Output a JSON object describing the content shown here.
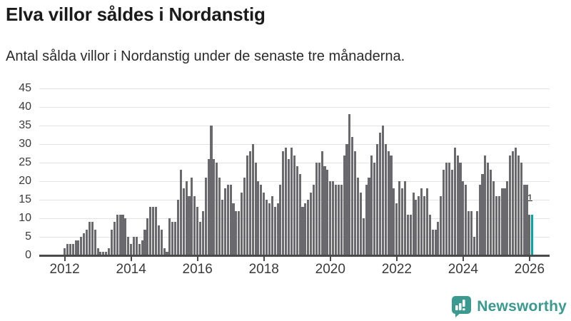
{
  "header": {
    "title": "Elva villor såldes i Nordanstig",
    "subtitle": "Antal sålda villor i Nordanstig under de senaste tre månaderna."
  },
  "chart_data": {
    "type": "bar",
    "title": "Elva villor såldes i Nordanstig",
    "subtitle": "Antal sålda villor i Nordanstig under de senaste tre månaderna.",
    "frequency": "monthly",
    "x_start": "2012-01",
    "x_end": "2026-02",
    "xlabel": "",
    "ylabel": "",
    "ylim": [
      0,
      45
    ],
    "grid": true,
    "yticks": [
      0,
      5,
      10,
      15,
      20,
      25,
      30,
      35,
      40,
      45
    ],
    "xticks": [
      2012,
      2014,
      2016,
      2018,
      2020,
      2022,
      2024,
      2026
    ],
    "values": [
      2,
      3,
      3,
      3,
      4,
      4,
      5,
      6,
      7,
      9,
      9,
      7,
      2,
      1,
      1,
      1,
      2,
      7,
      9,
      11,
      11,
      11,
      10,
      5,
      3,
      5,
      5,
      3,
      4,
      7,
      10,
      13,
      13,
      13,
      8,
      7,
      2,
      1,
      10,
      9,
      9,
      15,
      23,
      18,
      20,
      16,
      21,
      16,
      13,
      9,
      12,
      21,
      26,
      35,
      26,
      25,
      21,
      15,
      18,
      19,
      19,
      14,
      12,
      12,
      17,
      21,
      27,
      28,
      30,
      25,
      20,
      19,
      17,
      15,
      14,
      16,
      13,
      14,
      19,
      28,
      29,
      26,
      29,
      27,
      24,
      22,
      13,
      14,
      15,
      17,
      19,
      25,
      25,
      28,
      24,
      23,
      20,
      20,
      19,
      19,
      19,
      27,
      30,
      38,
      32,
      28,
      21,
      17,
      10,
      19,
      21,
      27,
      25,
      30,
      33,
      35,
      30,
      28,
      27,
      18,
      14,
      20,
      18,
      20,
      11,
      11,
      17,
      15,
      16,
      18,
      16,
      18,
      11,
      7,
      7,
      9,
      16,
      23,
      25,
      25,
      23,
      29,
      27,
      25,
      20,
      19,
      12,
      12,
      5,
      12,
      19,
      22,
      27,
      25,
      23,
      20,
      16,
      16,
      18,
      18,
      20,
      27,
      28,
      29,
      27,
      25,
      19,
      19,
      11,
      11
    ],
    "highlight_last": true,
    "last_value_label": "11",
    "colors": {
      "bar": "#69696e",
      "highlight": "#00a6a4"
    }
  },
  "footer": {
    "brand": "Newsworthy",
    "brand_color": "#3a9a90",
    "logo_icon": "bar-chart-speech-bubble-icon"
  }
}
